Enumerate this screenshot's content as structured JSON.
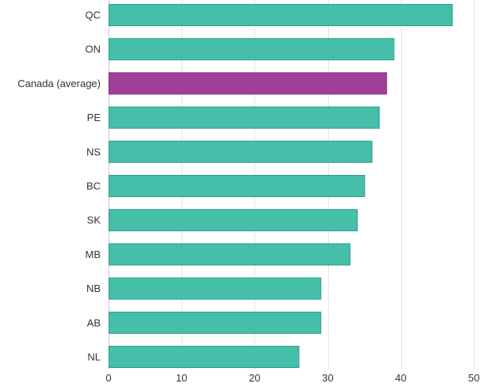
{
  "chart_data": {
    "type": "bar",
    "orientation": "horizontal",
    "title": "",
    "xlabel": "",
    "ylabel": "",
    "categories": [
      "QC",
      "ON",
      "Canada (average)",
      "PE",
      "NS",
      "BC",
      "SK",
      "MB",
      "NB",
      "AB",
      "NL"
    ],
    "values": [
      47,
      39,
      38,
      37,
      36,
      35,
      34,
      33,
      29,
      29,
      26
    ],
    "highlight": "Canada (average)",
    "xlim": [
      0,
      50
    ],
    "xticks": [
      0,
      10,
      20,
      30,
      40,
      50
    ],
    "grid": true,
    "legend": "none",
    "colors": {
      "bar": "#45bfa9",
      "bar_border": "#2f9c88",
      "highlight": "#a0409a",
      "highlight_border": "#7d2d78"
    }
  }
}
